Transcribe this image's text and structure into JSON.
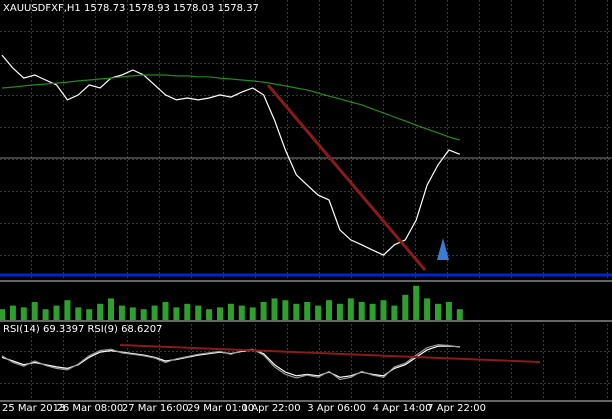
{
  "chart_data": [
    {
      "type": "line",
      "title": "XAUUSDFXF,H1 1578.73 1578.93 1578.03 1578.37",
      "categories": [
        "25 Mar 2013",
        null,
        null,
        null,
        null,
        "26 Mar 08:00",
        null,
        null,
        null,
        null,
        null,
        "27 Mar 16:00",
        null,
        null,
        null,
        null,
        null,
        "29 Mar 01:00",
        null,
        null,
        null,
        null,
        "1 Apr 22:00",
        null,
        null,
        null,
        null,
        null,
        "3 Apr 06:00",
        null,
        null,
        null,
        null,
        null,
        "4 Apr 14:00",
        null,
        null,
        null,
        null,
        "7 Apr 22:00",
        null,
        null,
        null
      ],
      "ylim": [
        1538,
        1628
      ],
      "series": [
        {
          "color": "#ffffff",
          "values": [
            1610.3,
            1606.1,
            1602.9,
            1603.9,
            1602.3,
            1600.7,
            1595.9,
            1597.5,
            1600.7,
            1599.7,
            1602.9,
            1603.9,
            1605.5,
            1603.9,
            1600.7,
            1597.5,
            1595.9,
            1596.5,
            1595.9,
            1596.5,
            1597.5,
            1596.8,
            1598.4,
            1599.7,
            1597.5,
            1589.4,
            1579.8,
            1571.8,
            1568.5,
            1565.3,
            1563.7,
            1554.1,
            1550.9,
            1549.3,
            1547.6,
            1546.0,
            1549.3,
            1550.9,
            1557.3,
            1568.5,
            1575.0,
            1579.8,
            1578.4
          ]
        },
        {
          "color": "#1e8c1e",
          "values": [
            1599.7,
            1600.0,
            1600.4,
            1600.7,
            1601.0,
            1601.3,
            1601.6,
            1602.0,
            1602.3,
            1602.6,
            1602.9,
            1603.3,
            1603.6,
            1603.9,
            1603.9,
            1603.9,
            1603.6,
            1603.6,
            1603.3,
            1603.3,
            1602.9,
            1602.6,
            1602.3,
            1602.0,
            1601.6,
            1601.0,
            1600.4,
            1599.7,
            1599.1,
            1598.1,
            1597.1,
            1596.2,
            1595.2,
            1594.3,
            1593.0,
            1591.7,
            1590.4,
            1589.1,
            1587.8,
            1586.5,
            1585.3,
            1584.0,
            1583.0
          ]
        }
      ]
    },
    {
      "type": "bar",
      "color": "#2ea02e",
      "ylim": [
        0,
        100
      ],
      "values": [
        30,
        40,
        35,
        50,
        30,
        40,
        55,
        35,
        30,
        45,
        60,
        40,
        35,
        30,
        40,
        50,
        35,
        45,
        40,
        30,
        35,
        45,
        40,
        35,
        50,
        60,
        55,
        45,
        50,
        40,
        55,
        45,
        60,
        50,
        45,
        55,
        40,
        70,
        95,
        60,
        45,
        50,
        30
      ]
    },
    {
      "type": "line",
      "title": "RSI(14) 69.3397 RSI(9) 68.6207",
      "ylim": [
        0,
        100
      ],
      "series": [
        {
          "color": "#ffffff",
          "values": [
            55,
            50,
            45,
            48,
            45,
            42,
            40,
            45,
            55,
            62,
            64,
            62,
            60,
            58,
            55,
            50,
            52,
            55,
            58,
            60,
            62,
            60,
            63,
            65,
            60,
            45,
            35,
            30,
            32,
            30,
            35,
            28,
            30,
            35,
            32,
            30,
            40,
            45,
            55,
            65,
            70,
            70,
            69.3
          ]
        },
        {
          "color": "#9a9a9a",
          "values": [
            57,
            48,
            43,
            50,
            44,
            40,
            38,
            46,
            57,
            64,
            66,
            61,
            59,
            57,
            54,
            48,
            53,
            56,
            59,
            61,
            63,
            59,
            64,
            66,
            58,
            42,
            32,
            27,
            31,
            28,
            36,
            25,
            28,
            36,
            31,
            28,
            42,
            47,
            58,
            68,
            72,
            71,
            68.6
          ]
        }
      ]
    }
  ]
}
